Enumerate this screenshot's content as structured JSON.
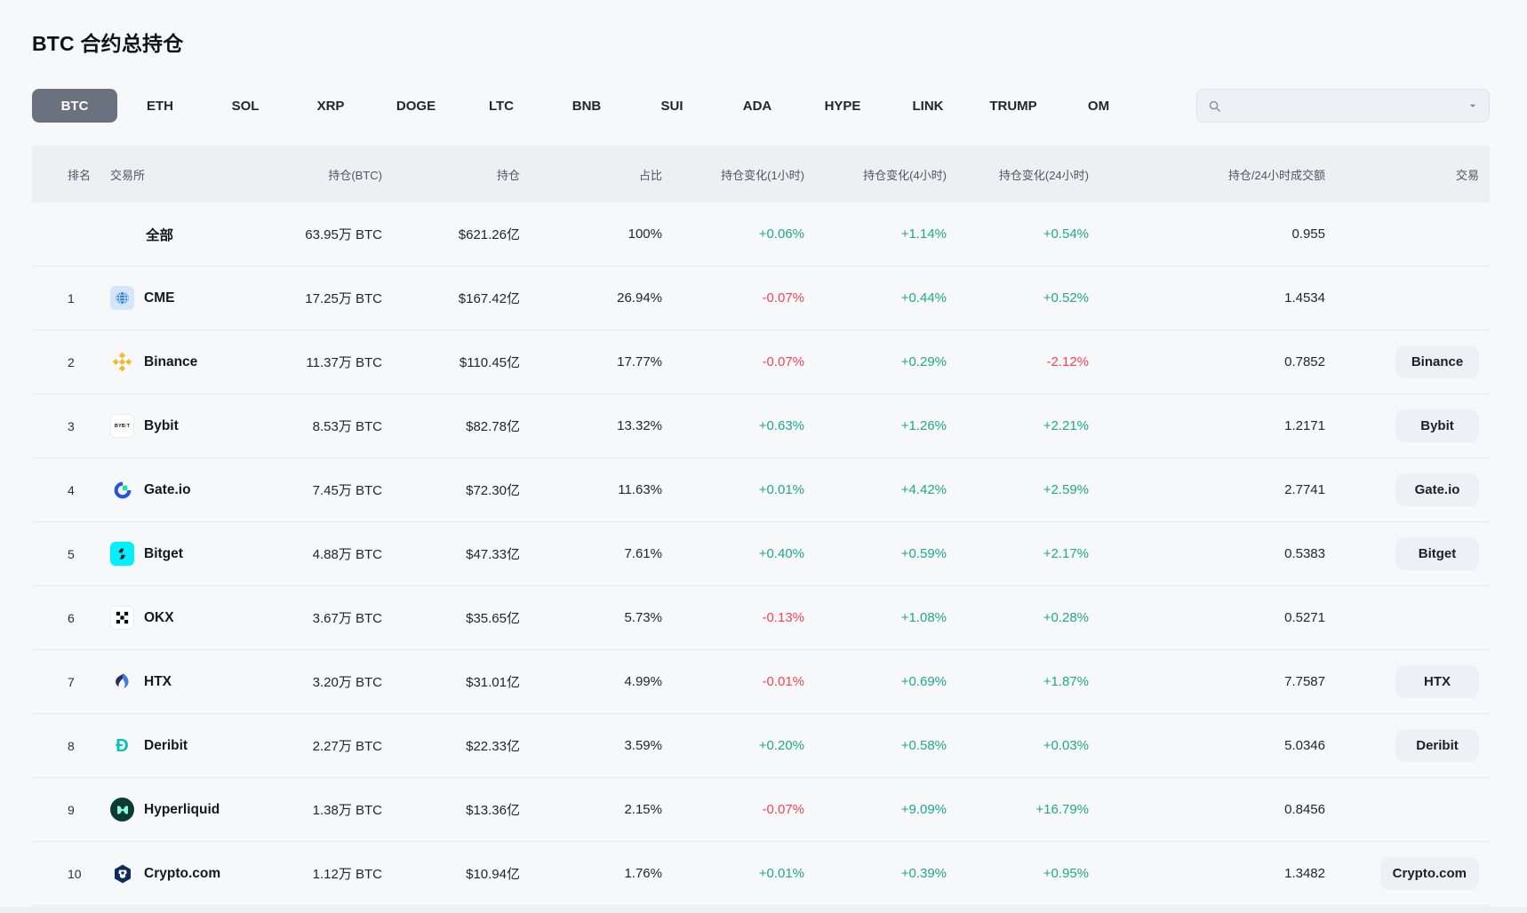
{
  "page": {
    "title": "BTC 合约总持仓"
  },
  "tabs": {
    "items": [
      "BTC",
      "ETH",
      "SOL",
      "XRP",
      "DOGE",
      "LTC",
      "BNB",
      "SUI",
      "ADA",
      "HYPE",
      "LINK",
      "TRUMP",
      "OM"
    ],
    "active": "BTC"
  },
  "search": {
    "value": "",
    "placeholder": "",
    "icons": [
      "search-icon",
      "chevron-down-icon"
    ]
  },
  "colors": {
    "positive": "#1fa98c",
    "negative": "#f2465a",
    "active_tab_bg": "#6a7280"
  },
  "table": {
    "headers": {
      "rank": "排名",
      "exchange": "交易所",
      "oi_btc": "持仓(BTC)",
      "oi_usd": "持仓",
      "share": "占比",
      "chg1h": "持仓变化(1小时)",
      "chg4h": "持仓变化(4小时)",
      "chg24h": "持仓变化(24小时)",
      "ratio": "持仓/24小时成交额",
      "trade": "交易"
    },
    "rows": [
      {
        "rank": "",
        "name": "全部",
        "icon": null,
        "oi_btc": "63.95万 BTC",
        "oi_usd": "$621.26亿",
        "share": "100%",
        "chg1h": "+0.06%",
        "chg4h": "+1.14%",
        "chg24h": "+0.54%",
        "ratio": "0.955",
        "trade_button": null
      },
      {
        "rank": "1",
        "name": "CME",
        "icon": "cme-logo",
        "oi_btc": "17.25万 BTC",
        "oi_usd": "$167.42亿",
        "share": "26.94%",
        "chg1h": "-0.07%",
        "chg4h": "+0.44%",
        "chg24h": "+0.52%",
        "ratio": "1.4534",
        "trade_button": null
      },
      {
        "rank": "2",
        "name": "Binance",
        "icon": "binance-logo",
        "oi_btc": "11.37万 BTC",
        "oi_usd": "$110.45亿",
        "share": "17.77%",
        "chg1h": "-0.07%",
        "chg4h": "+0.29%",
        "chg24h": "-2.12%",
        "ratio": "0.7852",
        "trade_button": "Binance"
      },
      {
        "rank": "3",
        "name": "Bybit",
        "icon": "bybit-logo",
        "oi_btc": "8.53万 BTC",
        "oi_usd": "$82.78亿",
        "share": "13.32%",
        "chg1h": "+0.63%",
        "chg4h": "+1.26%",
        "chg24h": "+2.21%",
        "ratio": "1.2171",
        "trade_button": "Bybit"
      },
      {
        "rank": "4",
        "name": "Gate.io",
        "icon": "gateio-logo",
        "oi_btc": "7.45万 BTC",
        "oi_usd": "$72.30亿",
        "share": "11.63%",
        "chg1h": "+0.01%",
        "chg4h": "+4.42%",
        "chg24h": "+2.59%",
        "ratio": "2.7741",
        "trade_button": "Gate.io"
      },
      {
        "rank": "5",
        "name": "Bitget",
        "icon": "bitget-logo",
        "oi_btc": "4.88万 BTC",
        "oi_usd": "$47.33亿",
        "share": "7.61%",
        "chg1h": "+0.40%",
        "chg4h": "+0.59%",
        "chg24h": "+2.17%",
        "ratio": "0.5383",
        "trade_button": "Bitget"
      },
      {
        "rank": "6",
        "name": "OKX",
        "icon": "okx-logo",
        "oi_btc": "3.67万 BTC",
        "oi_usd": "$35.65亿",
        "share": "5.73%",
        "chg1h": "-0.13%",
        "chg4h": "+1.08%",
        "chg24h": "+0.28%",
        "ratio": "0.5271",
        "trade_button": null
      },
      {
        "rank": "7",
        "name": "HTX",
        "icon": "htx-logo",
        "oi_btc": "3.20万 BTC",
        "oi_usd": "$31.01亿",
        "share": "4.99%",
        "chg1h": "-0.01%",
        "chg4h": "+0.69%",
        "chg24h": "+1.87%",
        "ratio": "7.7587",
        "trade_button": "HTX"
      },
      {
        "rank": "8",
        "name": "Deribit",
        "icon": "deribit-logo",
        "oi_btc": "2.27万 BTC",
        "oi_usd": "$22.33亿",
        "share": "3.59%",
        "chg1h": "+0.20%",
        "chg4h": "+0.58%",
        "chg24h": "+0.03%",
        "ratio": "5.0346",
        "trade_button": "Deribit"
      },
      {
        "rank": "9",
        "name": "Hyperliquid",
        "icon": "hyperliquid-logo",
        "oi_btc": "1.38万 BTC",
        "oi_usd": "$13.36亿",
        "share": "2.15%",
        "chg1h": "-0.07%",
        "chg4h": "+9.09%",
        "chg24h": "+16.79%",
        "ratio": "0.8456",
        "trade_button": null
      },
      {
        "rank": "10",
        "name": "Crypto.com",
        "icon": "cryptocom-logo",
        "oi_btc": "1.12万 BTC",
        "oi_usd": "$10.94亿",
        "share": "1.76%",
        "chg1h": "+0.01%",
        "chg4h": "+0.39%",
        "chg24h": "+0.95%",
        "ratio": "1.3482",
        "trade_button": "Crypto.com"
      }
    ]
  }
}
